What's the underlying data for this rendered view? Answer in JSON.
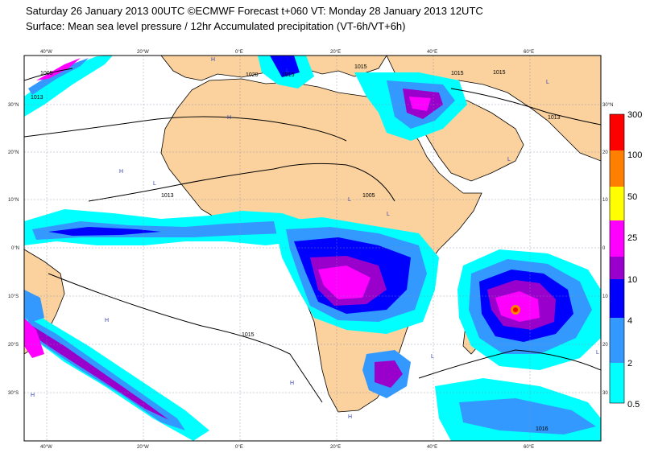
{
  "title": {
    "line1": "Saturday 26 January 2013 00UTC ©ECMWF Forecast t+060 VT: Monday 28 January 2013 12UTC",
    "line2": "Surface: Mean sea level pressure / 12hr Accumulated precipitation (VT-6h/VT+6h)"
  },
  "axes": {
    "lon_ticks": [
      "40°W",
      "20°W",
      "0°E",
      "20°E",
      "40°E",
      "60°E"
    ],
    "lat_ticks_left": [
      "30°N",
      "20°N",
      "10°N",
      "0°N",
      "10°S",
      "20°S",
      "30°S"
    ],
    "lat_ticks_right": [
      "30°N",
      "20",
      "10",
      "0",
      "10",
      "20",
      "30"
    ]
  },
  "isobar_labels": [
    "1005",
    "1013",
    "1020",
    "1015",
    "1015",
    "1015",
    "1013",
    "1013",
    "1015",
    "1005",
    "1015",
    "1016"
  ],
  "pressure_centres": [
    "H",
    "L"
  ],
  "legend": {
    "levels": [
      "300",
      "100",
      "50",
      "25",
      "10",
      "4",
      "2",
      "0.5"
    ],
    "colors": [
      "#ff0000",
      "#ff8000",
      "#ffff00",
      "#ff00ff",
      "#9900cc",
      "#0000ff",
      "#3399ff",
      "#00ffff"
    ]
  },
  "colors": {
    "land": "#fbd29e",
    "sea": "#ffffff",
    "precip_light": "#00ffff",
    "precip_medium": "#3399ff",
    "precip_heavy": "#0000ff",
    "precip_very_heavy": "#9900cc",
    "precip_extreme": "#ff00ff"
  }
}
